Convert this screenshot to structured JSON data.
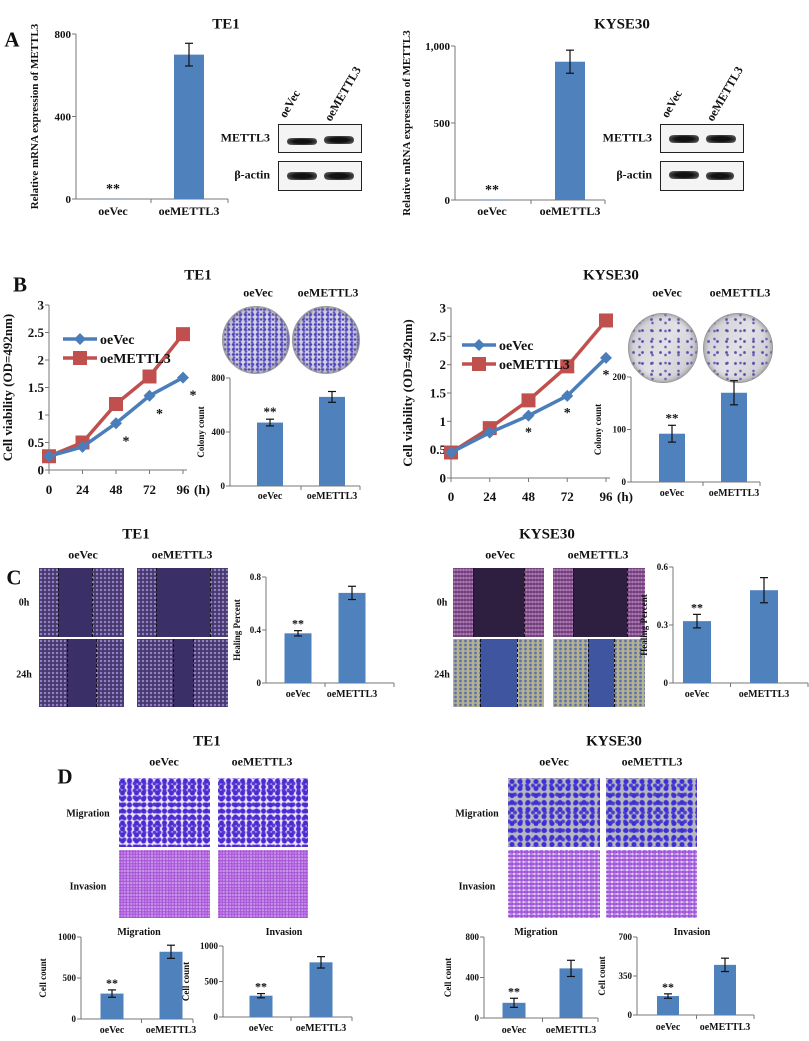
{
  "panels": {
    "A": {
      "letter": "A",
      "te1": {
        "title": "TE1",
        "blot_lanes": [
          "oeVec",
          "oeMETTL3"
        ],
        "blot_rows": [
          "METTL3",
          "β-actin"
        ]
      },
      "kyse30": {
        "title": "KYSE30",
        "blot_lanes": [
          "oeVec",
          "oeMETTL3"
        ],
        "blot_rows": [
          "METTL3",
          "β-actin"
        ]
      }
    },
    "B": {
      "letter": "B",
      "te1": {
        "title": "TE1",
        "plate_labels": [
          "oeVec",
          "oeMETTL3"
        ]
      },
      "kyse30": {
        "title": "KYSE30",
        "plate_labels": [
          "oeVec",
          "oeMETTL3"
        ]
      }
    },
    "C": {
      "letter": "C",
      "te1": {
        "title": "TE1",
        "columns": [
          "oeVec",
          "oeMETTL3"
        ],
        "rows": [
          "0h",
          "24h"
        ]
      },
      "kyse30": {
        "title": "KYSE30",
        "columns": [
          "oeVec",
          "oeMETTL3"
        ],
        "rows": [
          "0h",
          "24h"
        ]
      }
    },
    "D": {
      "letter": "D",
      "te1": {
        "title": "TE1",
        "columns": [
          "oeVec",
          "oeMETTL3"
        ],
        "rows": [
          "Migration",
          "Invasion"
        ]
      },
      "kyse30": {
        "title": "KYSE30",
        "columns": [
          "oeVec",
          "oeMETTL3"
        ],
        "rows": [
          "Migration",
          "Invasion"
        ]
      }
    }
  },
  "colors": {
    "bar": "#4f81bd",
    "oeVec": "#4a7ebb",
    "oeMETTL3": "#c0504d"
  },
  "chart_data": [
    {
      "id": "A_TE1",
      "type": "bar",
      "title": "",
      "ylabel": "Relative mRNA expression of METTL3",
      "categories": [
        "oeVec",
        "oeMETTL3"
      ],
      "values": [
        1,
        700
      ],
      "errors": [
        0,
        55
      ],
      "significance": [
        "**",
        ""
      ],
      "ylim": [
        0,
        800
      ],
      "yticks": [
        0,
        400,
        800
      ],
      "ytick_labels": [
        "0",
        "400",
        "800"
      ]
    },
    {
      "id": "A_KYSE30",
      "type": "bar",
      "title": "",
      "ylabel": "Relative mRNA expression of METTL3",
      "categories": [
        "oeVec",
        "oeMETTL3"
      ],
      "values": [
        1,
        898
      ],
      "errors": [
        0,
        75
      ],
      "significance": [
        "**",
        ""
      ],
      "ylim": [
        0,
        1000
      ],
      "yticks": [
        0,
        500,
        1000
      ],
      "ytick_labels": [
        "0",
        "500",
        "1,000"
      ]
    },
    {
      "id": "B_TE1_viability",
      "type": "line",
      "ylabel": "Cell viability (OD=492nm)",
      "x": [
        0,
        24,
        48,
        72,
        96
      ],
      "xunit": "(h)",
      "ylim": [
        0,
        3
      ],
      "yticks": [
        0,
        0.5,
        1,
        1.5,
        2,
        2.5,
        3
      ],
      "ytick_labels": [
        "0",
        "0.5",
        "1",
        "1.5",
        "2",
        "2.5",
        "3"
      ],
      "series": [
        {
          "name": "oeVec",
          "values": [
            0.25,
            0.42,
            0.85,
            1.35,
            1.68
          ],
          "errors": [
            0.02,
            0.03,
            0.05,
            0.06,
            0.05
          ]
        },
        {
          "name": "oeMETTL3",
          "values": [
            0.25,
            0.5,
            1.2,
            1.7,
            2.47
          ],
          "errors": [
            0.02,
            0.03,
            0.04,
            0.05,
            0.05
          ]
        }
      ],
      "significance": [
        {
          "x": 48,
          "label": "*"
        },
        {
          "x": 72,
          "label": "*"
        },
        {
          "x": 96,
          "label": "*"
        }
      ],
      "legend": "top-left"
    },
    {
      "id": "B_TE1_colony",
      "type": "bar",
      "title": "",
      "ylabel": "Colony count",
      "categories": [
        "oeVec",
        "oeMETTL3"
      ],
      "values": [
        470,
        660
      ],
      "errors": [
        25,
        40
      ],
      "significance": [
        "**",
        ""
      ],
      "ylim": [
        0,
        800
      ],
      "yticks": [
        0,
        400,
        800
      ],
      "ytick_labels": [
        "0",
        "400",
        "800"
      ]
    },
    {
      "id": "B_KYSE30_viability",
      "type": "line",
      "ylabel": "Cell viability (OD=492nm)",
      "x": [
        0,
        24,
        48,
        72,
        96
      ],
      "xunit": "(h)",
      "ylim": [
        0,
        3
      ],
      "yticks": [
        0,
        0.5,
        1,
        1.5,
        2,
        2.5,
        3
      ],
      "ytick_labels": [
        "0",
        "0.5",
        "1",
        "1.5",
        "2",
        "2.5",
        "3"
      ],
      "series": [
        {
          "name": "oeVec",
          "values": [
            0.45,
            0.8,
            1.1,
            1.45,
            2.12
          ],
          "errors": [
            0.02,
            0.03,
            0.05,
            0.08,
            0.07
          ]
        },
        {
          "name": "oeMETTL3",
          "values": [
            0.45,
            0.88,
            1.37,
            1.97,
            2.78
          ],
          "errors": [
            0.02,
            0.03,
            0.04,
            0.05,
            0.05
          ]
        }
      ],
      "significance": [
        {
          "x": 48,
          "label": "*"
        },
        {
          "x": 72,
          "label": "*"
        },
        {
          "x": 96,
          "label": "*"
        }
      ],
      "legend": "top-left"
    },
    {
      "id": "B_KYSE30_colony",
      "type": "bar",
      "title": "",
      "ylabel": "Colony count",
      "categories": [
        "oeVec",
        "oeMETTL3"
      ],
      "values": [
        92,
        170
      ],
      "errors": [
        16,
        23
      ],
      "significance": [
        "**",
        ""
      ],
      "ylim": [
        0,
        200
      ],
      "yticks": [
        0,
        100,
        200
      ],
      "ytick_labels": [
        "0",
        "100",
        "200"
      ]
    },
    {
      "id": "C_TE1_healing",
      "type": "bar",
      "title": "",
      "ylabel": "Healing Percent",
      "categories": [
        "oeVec",
        "oeMETTL3"
      ],
      "values": [
        0.375,
        0.68
      ],
      "errors": [
        0.02,
        0.05
      ],
      "significance": [
        "**",
        ""
      ],
      "ylim": [
        0,
        0.8
      ],
      "yticks": [
        0,
        0.4,
        0.8
      ],
      "ytick_labels": [
        "0",
        "0.4",
        "0.8"
      ]
    },
    {
      "id": "C_KYSE30_healing",
      "type": "bar",
      "title": "",
      "ylabel": "Healing Percent",
      "categories": [
        "oeVec",
        "oeMETTL3"
      ],
      "values": [
        0.32,
        0.48
      ],
      "errors": [
        0.035,
        0.065
      ],
      "significance": [
        "**",
        ""
      ],
      "ylim": [
        0,
        0.6
      ],
      "yticks": [
        0,
        0.3,
        0.6
      ],
      "ytick_labels": [
        "0",
        "0.3",
        "0.6"
      ]
    },
    {
      "id": "D_TE1_migration",
      "type": "bar",
      "title": "Migration",
      "ylabel": "Cell count",
      "categories": [
        "oeVec",
        "oeMETTL3"
      ],
      "values": [
        310,
        820
      ],
      "errors": [
        45,
        80
      ],
      "significance": [
        "**",
        ""
      ],
      "ylim": [
        0,
        1000
      ],
      "yticks": [
        0,
        500,
        1000
      ],
      "ytick_labels": [
        "0",
        "500",
        "1000"
      ]
    },
    {
      "id": "D_TE1_invasion",
      "type": "bar",
      "title": "Invasion",
      "ylabel": "Cell count",
      "categories": [
        "oeVec",
        "oeMETTL3"
      ],
      "values": [
        300,
        770
      ],
      "errors": [
        30,
        80
      ],
      "significance": [
        "**",
        ""
      ],
      "ylim": [
        0,
        1000
      ],
      "yticks": [
        0,
        500,
        1000
      ],
      "ytick_labels": [
        "0",
        "500",
        "1000"
      ]
    },
    {
      "id": "D_KYSE30_migration",
      "type": "bar",
      "title": "Migration",
      "ylabel": "Cell count",
      "categories": [
        "oeVec",
        "oeMETTL3"
      ],
      "values": [
        150,
        490
      ],
      "errors": [
        45,
        80
      ],
      "significance": [
        "**",
        ""
      ],
      "ylim": [
        0,
        800
      ],
      "yticks": [
        0,
        400,
        800
      ],
      "ytick_labels": [
        "0",
        "400",
        "800"
      ]
    },
    {
      "id": "D_KYSE30_invasion",
      "type": "bar",
      "title": "Invasion",
      "ylabel": "Cell count",
      "categories": [
        "oeVec",
        "oeMETTL3"
      ],
      "values": [
        170,
        450
      ],
      "errors": [
        20,
        60
      ],
      "significance": [
        "**",
        ""
      ],
      "ylim": [
        0,
        700
      ],
      "yticks": [
        0,
        350,
        700
      ],
      "ytick_labels": [
        "0",
        "350",
        "700"
      ]
    }
  ]
}
